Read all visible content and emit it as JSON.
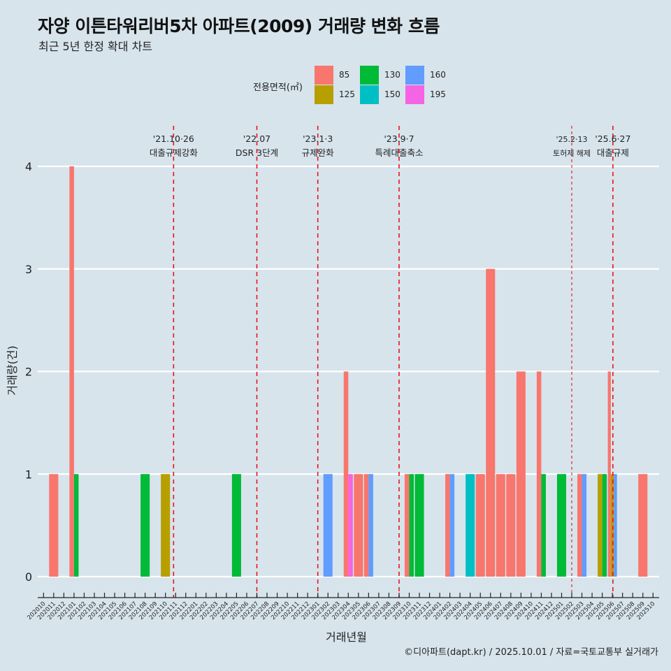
{
  "header": {
    "title": "자양 이튼타워리버5차 아파트(2009) 거래량 변화 흐름",
    "subtitle": "최근 5년 한정 확대 차트"
  },
  "legend": {
    "title": "전용면적(㎡)",
    "items": [
      {
        "label": "85",
        "color": "#F8766D"
      },
      {
        "label": "125",
        "color": "#B79F00"
      },
      {
        "label": "130",
        "color": "#00BA38"
      },
      {
        "label": "150",
        "color": "#00BFC4"
      },
      {
        "label": "160",
        "color": "#619CFF"
      },
      {
        "label": "195",
        "color": "#F564E3"
      }
    ]
  },
  "caption": "©디아파트(dapt.kr) / 2025.10.01 / 자료=국토교통부 실거래가",
  "chart_data": {
    "type": "bar",
    "title": "자양 이튼타워리버5차 아파트(2009) 거래량 변화 흐름",
    "subtitle": "최근 5년 한정 확대 차트",
    "xlabel": "거래년월",
    "ylabel": "거래량(건)",
    "ylim": [
      0,
      4
    ],
    "yticks": [
      "0",
      "1",
      "2",
      "3",
      "4"
    ],
    "grid": true,
    "legend_position": "top",
    "categories": [
      "202010",
      "202011",
      "202012",
      "202101",
      "202102",
      "202103",
      "202104",
      "202105",
      "202106",
      "202107",
      "202108",
      "202109",
      "202110",
      "202111",
      "202112",
      "202201",
      "202202",
      "202203",
      "202204",
      "202205",
      "202206",
      "202207",
      "202208",
      "202209",
      "202210",
      "202211",
      "202212",
      "202301",
      "202302",
      "202303",
      "202304",
      "202305",
      "202306",
      "202307",
      "202308",
      "202309",
      "202310",
      "202311",
      "202312",
      "202401",
      "202402",
      "202403",
      "202404",
      "202405",
      "202406",
      "202407",
      "202408",
      "202409",
      "202410",
      "202411",
      "202412",
      "202501",
      "202502",
      "202503",
      "202504",
      "202505",
      "202506",
      "202507",
      "202508",
      "202509",
      "202510"
    ],
    "series_groups": [
      {
        "month": "202011",
        "bars": [
          {
            "area": "85",
            "value": 1
          }
        ]
      },
      {
        "month": "202101",
        "bars": [
          {
            "area": "85",
            "value": 4
          },
          {
            "area": "130",
            "value": 1
          }
        ]
      },
      {
        "month": "202108",
        "bars": [
          {
            "area": "130",
            "value": 1
          }
        ]
      },
      {
        "month": "202110",
        "bars": [
          {
            "area": "125",
            "value": 1
          }
        ]
      },
      {
        "month": "202205",
        "bars": [
          {
            "area": "130",
            "value": 1
          }
        ]
      },
      {
        "month": "202302",
        "bars": [
          {
            "area": "160",
            "value": 1
          }
        ]
      },
      {
        "month": "202304",
        "bars": [
          {
            "area": "85",
            "value": 2
          },
          {
            "area": "195",
            "value": 1
          }
        ]
      },
      {
        "month": "202305",
        "bars": [
          {
            "area": "85",
            "value": 1
          }
        ]
      },
      {
        "month": "202306",
        "bars": [
          {
            "area": "85",
            "value": 1
          },
          {
            "area": "160",
            "value": 1
          }
        ]
      },
      {
        "month": "202310",
        "bars": [
          {
            "area": "85",
            "value": 1
          },
          {
            "area": "130",
            "value": 1
          }
        ]
      },
      {
        "month": "202311",
        "bars": [
          {
            "area": "130",
            "value": 1
          }
        ]
      },
      {
        "month": "202402",
        "bars": [
          {
            "area": "85",
            "value": 1
          },
          {
            "area": "160",
            "value": 1
          }
        ]
      },
      {
        "month": "202404",
        "bars": [
          {
            "area": "150",
            "value": 1
          }
        ]
      },
      {
        "month": "202405",
        "bars": [
          {
            "area": "85",
            "value": 1
          }
        ]
      },
      {
        "month": "202406",
        "bars": [
          {
            "area": "85",
            "value": 3
          }
        ]
      },
      {
        "month": "202407",
        "bars": [
          {
            "area": "85",
            "value": 1
          }
        ]
      },
      {
        "month": "202408",
        "bars": [
          {
            "area": "85",
            "value": 1
          }
        ]
      },
      {
        "month": "202409",
        "bars": [
          {
            "area": "85",
            "value": 2
          }
        ]
      },
      {
        "month": "202411",
        "bars": [
          {
            "area": "85",
            "value": 2
          },
          {
            "area": "130",
            "value": 1
          }
        ]
      },
      {
        "month": "202501",
        "bars": [
          {
            "area": "130",
            "value": 1
          }
        ]
      },
      {
        "month": "202503",
        "bars": [
          {
            "area": "85",
            "value": 1
          },
          {
            "area": "160",
            "value": 1
          }
        ]
      },
      {
        "month": "202505",
        "bars": [
          {
            "area": "125",
            "value": 1
          },
          {
            "area": "130",
            "value": 1
          }
        ]
      },
      {
        "month": "202506",
        "bars": [
          {
            "area": "85",
            "value": 2
          },
          {
            "area": "125",
            "value": 1
          },
          {
            "area": "160",
            "value": 1
          }
        ]
      },
      {
        "month": "202509",
        "bars": [
          {
            "area": "85",
            "value": 1
          }
        ]
      }
    ],
    "annotations": [
      {
        "date_label": "'21.10·26",
        "text": "대출규제강화",
        "month_pos": 12.8,
        "style": "major"
      },
      {
        "date_label": "'22.07",
        "text": "DSR 3단계",
        "month_pos": 21,
        "style": "major"
      },
      {
        "date_label": "'23.1·3",
        "text": "규제완화",
        "month_pos": 27,
        "style": "major"
      },
      {
        "date_label": "'23.9·7",
        "text": "특례대출축소",
        "month_pos": 35,
        "style": "major"
      },
      {
        "date_label": "'25.2·13",
        "text": "토허제 해제",
        "month_pos": 52,
        "style": "minor"
      },
      {
        "date_label": "'25.6·27",
        "text": "대출규제",
        "month_pos": 56.05,
        "style": "major"
      }
    ]
  }
}
